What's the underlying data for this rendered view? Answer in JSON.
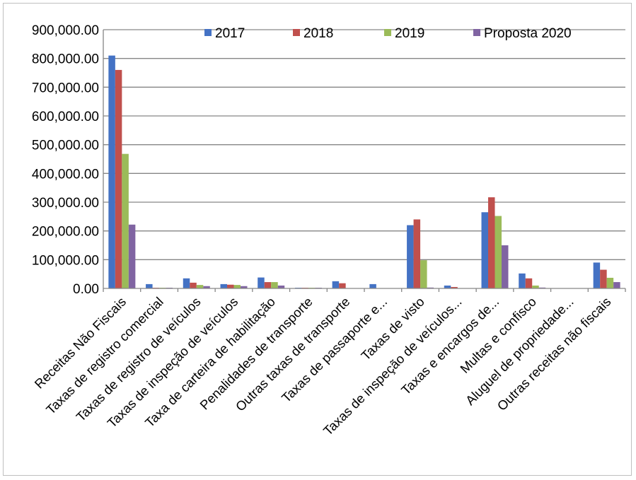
{
  "chart_data": {
    "type": "bar",
    "title": "",
    "xlabel": "",
    "ylabel": "",
    "ylim": [
      0,
      900000
    ],
    "yticks": [
      0,
      100000,
      200000,
      300000,
      400000,
      500000,
      600000,
      700000,
      800000,
      900000
    ],
    "ytick_labels": [
      "0.00",
      "100,000.00",
      "200,000.00",
      "300,000.00",
      "400,000.00",
      "500,000.00",
      "600,000.00",
      "700,000.00",
      "800,000.00",
      "900,000.00"
    ],
    "grid": true,
    "legend_position": "top",
    "categories": [
      "Receitas Não Fiscais",
      "Taxas de registro comercial",
      "Taxas de registro de veículos",
      "Taxas de inspeção de veículos",
      "Taxa de carteira de habilitação",
      "Penalidades de transporte",
      "Outras taxas de transporte",
      "Taxas de passaporte e...",
      "Taxas de visto",
      "Taxas de inspeção de veículos...",
      "Taxas e encargos de...",
      "Multas e confisco",
      "Aluguel de propriedade...",
      "Outras receitas não fiscais"
    ],
    "series": [
      {
        "name": "2017",
        "color": "#4472C4",
        "values": [
          810000,
          15000,
          35000,
          15000,
          38000,
          1000,
          25000,
          15000,
          220000,
          10000,
          265000,
          52000,
          0,
          90000
        ]
      },
      {
        "name": "2018",
        "color": "#C0504D",
        "values": [
          760000,
          1000,
          20000,
          13000,
          22000,
          1000,
          18000,
          0,
          240000,
          5000,
          317000,
          35000,
          0,
          65000
        ]
      },
      {
        "name": "2019",
        "color": "#9BBB59",
        "values": [
          468000,
          1000,
          12000,
          12000,
          22000,
          1000,
          0,
          0,
          98000,
          0,
          252000,
          10000,
          0,
          37000
        ]
      },
      {
        "name": "Proposta 2020",
        "color": "#8064A2",
        "values": [
          222000,
          1000,
          8000,
          8000,
          10000,
          1000,
          0,
          0,
          3000,
          0,
          150000,
          3000,
          0,
          22000
        ]
      }
    ]
  }
}
